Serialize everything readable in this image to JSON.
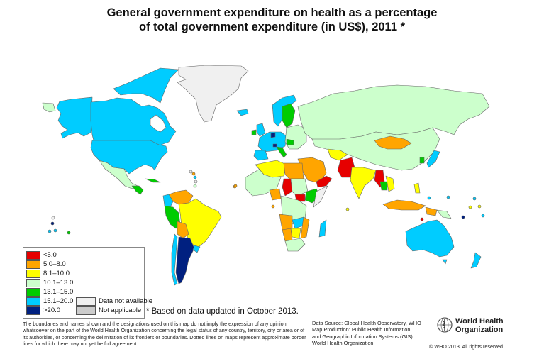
{
  "title": {
    "line1": "General government expenditure on health as a percentage",
    "line2": "of total government expenditure (in US$), 2011 *"
  },
  "legend": {
    "items": [
      {
        "label": "<5.0",
        "color": "#e60000"
      },
      {
        "label": "5.0–8.0",
        "color": "#ffa500"
      },
      {
        "label": "8.1–10.0",
        "color": "#ffff00"
      },
      {
        "label": "10.1–13.0",
        "color": "#ccffcc"
      },
      {
        "label": "13.1–15.0",
        "color": "#00cc00"
      },
      {
        "label": "15.1–20.0",
        "color": "#00ccff"
      },
      {
        "label": ">20.0",
        "color": "#002080"
      }
    ],
    "extra": [
      {
        "label": "Data not available",
        "color": "#f0f0f0"
      },
      {
        "label": "Not applicable",
        "color": "#cccccc"
      }
    ]
  },
  "note": "* Based on data updated in October 2013.",
  "disclaimer": "The boundaries and names shown and the designations used on this map do not imply the expression of any opinion whatsoever on the part of the World Health Organization concerning the legal status of any country, territory, city or area or of its authorities, or concerning the delimitation of its frontiers or boundaries.  Dotted lines on maps represent approximate border lines for which there may not yet be full agreement.",
  "source": {
    "line1": "Data Source: Global Health Observatory, WHO",
    "line2": "Map Production: Public Health Information",
    "line3": "and Geographic Information Systems (GIS)",
    "line4": "World Health Organization"
  },
  "logo": {
    "line1": "World Health",
    "line2": "Organization"
  },
  "copyright": "© WHO 2013. All rights reserved.",
  "map_regions": [
    {
      "name": "canada",
      "class": "15.1–20.0"
    },
    {
      "name": "usa",
      "class": "15.1–20.0"
    },
    {
      "name": "greenland",
      "class": "Data not available"
    },
    {
      "name": "mexico",
      "class": "10.1–13.0"
    },
    {
      "name": "brazil",
      "class": "8.1–10.0"
    },
    {
      "name": "argentina",
      "class": ">20.0"
    },
    {
      "name": "russia",
      "class": "10.1–13.0"
    },
    {
      "name": "china",
      "class": "10.1–13.0"
    },
    {
      "name": "india",
      "class": "8.1–10.0"
    },
    {
      "name": "australia",
      "class": "15.1–20.0"
    },
    {
      "name": "mongolia",
      "class": "5.0–8.0"
    },
    {
      "name": "japan",
      "class": "15.1–20.0"
    }
  ]
}
